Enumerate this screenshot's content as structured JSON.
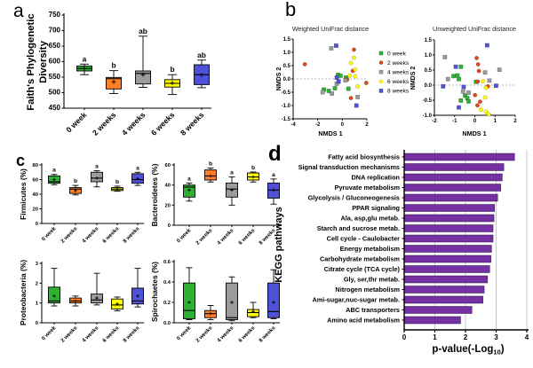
{
  "figure": {
    "panel_labels": {
      "a": "a",
      "b": "b",
      "c": "c",
      "d": "d"
    }
  },
  "palette": {
    "green": "#2eb133",
    "orange": "#ff7f27",
    "red": "#e8491b",
    "gray": "#9b9b9b",
    "yellow": "#ffff00",
    "blue": "#4f51d8",
    "purple": "#7531a2",
    "grid": "#c9c9c9",
    "dash": "#9a9a9a"
  },
  "groups": [
    "0 week",
    "2 weeks",
    "4 weeks",
    "6 weeks",
    "8 weeks"
  ],
  "chart_data": [
    {
      "id": "faith_pd_boxplot",
      "type": "box",
      "ylabel": "Faith's Phylogenetic Diversity",
      "ylabel_lines": [
        "Faith's Phylogenetic",
        "Diversity"
      ],
      "ylim": [
        450,
        750
      ],
      "yticks": [
        "450",
        "500",
        "550",
        "600",
        "650",
        "700",
        "750"
      ],
      "categories": [
        "0 week",
        "2 weeks",
        "4 weeks",
        "6 weeks",
        "8 weeks"
      ],
      "colors": [
        "#2eb133",
        "#ff7f27",
        "#9b9b9b",
        "#ffff00",
        "#4f51d8"
      ],
      "letters": [
        "a",
        "b",
        "ab",
        "b",
        "ab"
      ],
      "stats": [
        [
          558,
          570,
          578,
          586,
          592,
          578
        ],
        [
          497,
          512,
          545,
          549,
          571,
          535
        ],
        [
          517,
          528,
          562,
          570,
          682,
          558
        ],
        [
          494,
          518,
          530,
          542,
          558,
          531
        ],
        [
          516,
          526,
          558,
          590,
          605,
          557
        ]
      ]
    },
    {
      "id": "weighted_unifrac_nmds",
      "type": "scatter",
      "title": "Weighted UniFrac distance",
      "xlabel": "NMDS 1",
      "ylabel": "NMDS 2",
      "xlim": [
        -4,
        2
      ],
      "xticks": [
        "-4",
        "-2",
        "0",
        "2"
      ],
      "ylim": [
        -1.5,
        1.5
      ],
      "yticks": [
        "1.5",
        "1.0",
        "0.5",
        "0.0",
        "-0.5",
        "-1.0",
        "-1.5"
      ],
      "zero_line": true,
      "series": [
        {
          "name": "0 week",
          "marker": "square",
          "color": "#2eb133",
          "points": [
            [
              -0.35,
              0.15
            ],
            [
              -0.15,
              0.12
            ],
            [
              0.3,
              0.05
            ],
            [
              -1.5,
              -0.4
            ],
            [
              -1.1,
              -0.45
            ],
            [
              -0.6,
              -0.35
            ],
            [
              0.5,
              -0.37
            ]
          ]
        },
        {
          "name": "2 weeks",
          "marker": "circle",
          "color": "#e8491b",
          "points": [
            [
              -3.05,
              0.55
            ],
            [
              0.95,
              1.1
            ],
            [
              0.85,
              0.3
            ],
            [
              0.4,
              -0.02
            ],
            [
              1.95,
              -0.15
            ],
            [
              0.7,
              -0.72
            ]
          ]
        },
        {
          "name": "4 weeks",
          "marker": "square",
          "color": "#9b9b9b",
          "points": [
            [
              -0.9,
              1.15
            ],
            [
              0.25,
              -0.05
            ],
            [
              -1.6,
              -0.5
            ],
            [
              -0.85,
              -0.55
            ],
            [
              1.25,
              -0.68
            ],
            [
              -0.45,
              -0.18
            ]
          ]
        },
        {
          "name": "6 weeks",
          "marker": "circle",
          "color": "#ffff00",
          "points": [
            [
              0.95,
              0.8
            ],
            [
              0.7,
              0.6
            ],
            [
              1.05,
              0.35
            ],
            [
              1.05,
              0.1
            ],
            [
              0.6,
              0.12
            ],
            [
              1.25,
              -0.28
            ]
          ]
        },
        {
          "name": "8 weeks",
          "marker": "square",
          "color": "#4f51d8",
          "points": [
            [
              -0.5,
              1.25
            ],
            [
              -0.45,
              0.05
            ],
            [
              -0.3,
              -0.1
            ],
            [
              1.15,
              -1.0
            ]
          ]
        }
      ]
    },
    {
      "id": "unweighted_unifrac_nmds",
      "type": "scatter",
      "title": "Unweighted UniFrac distance",
      "xlabel": "NMDS 1",
      "ylabel": "NMDS 2",
      "xlim": [
        -2,
        2
      ],
      "xticks": [
        "-2",
        "-1",
        "0",
        "1",
        "2"
      ],
      "ylim": [
        -1.0,
        1.5
      ],
      "yticks": [
        "1.5",
        "1.0",
        "0.5",
        "0.0",
        "-0.5",
        "-1.0"
      ],
      "zero_line": true,
      "series": [
        {
          "name": "0 week",
          "marker": "square",
          "color": "#2eb133",
          "points": [
            [
              -0.69,
              0.61
            ],
            [
              -1.05,
              0.3
            ],
            [
              -0.86,
              0.32
            ],
            [
              -0.79,
              0.2
            ],
            [
              0.06,
              0.11
            ],
            [
              -0.48,
              -0.35
            ],
            [
              -0.37,
              -0.43
            ],
            [
              -0.69,
              -0.51
            ],
            [
              -0.31,
              -0.54
            ]
          ]
        },
        {
          "name": "2 weeks",
          "marker": "circle",
          "color": "#e8491b",
          "points": [
            [
              0.09,
              0.9
            ],
            [
              0.16,
              0.69
            ],
            [
              0.2,
              0.47
            ],
            [
              0.15,
              0.12
            ],
            [
              0.65,
              -0.04
            ],
            [
              0.01,
              -0.33
            ],
            [
              0.26,
              -0.55
            ],
            [
              0.13,
              -0.67
            ]
          ]
        },
        {
          "name": "4 weeks",
          "marker": "square",
          "color": "#9b9b9b",
          "points": [
            [
              -1.48,
              0.93
            ],
            [
              0.51,
              0.42
            ],
            [
              1.22,
              0.51
            ],
            [
              -1.33,
              0.2
            ],
            [
              0.72,
              0.15
            ],
            [
              -0.58,
              -0.21
            ],
            [
              -0.31,
              -0.25
            ]
          ]
        },
        {
          "name": "6 weeks",
          "marker": "circle",
          "color": "#ffff00",
          "points": [
            [
              0.4,
              0.13
            ],
            [
              0.55,
              -0.09
            ],
            [
              0.51,
              -0.41
            ],
            [
              0.3,
              -0.81
            ],
            [
              0.55,
              -0.88
            ],
            [
              0.69,
              -0.97
            ]
          ]
        },
        {
          "name": "8 weeks",
          "marker": "square",
          "color": "#4f51d8",
          "points": [
            [
              0.61,
              1.32
            ],
            [
              -0.94,
              0.61
            ],
            [
              -1.57,
              -0.04
            ],
            [
              -0.55,
              -0.06
            ],
            [
              1.05,
              -0.02
            ],
            [
              -0.79,
              -0.74
            ]
          ]
        }
      ]
    },
    {
      "id": "nmds_legend",
      "type": "legend",
      "entries": [
        {
          "label": "0 week",
          "marker": "square",
          "color": "#2eb133"
        },
        {
          "label": "2 weeks",
          "marker": "circle",
          "color": "#e8491b"
        },
        {
          "label": "4 weeks",
          "marker": "square",
          "color": "#9b9b9b"
        },
        {
          "label": "6 weeks",
          "marker": "circle",
          "color": "#ffff00"
        },
        {
          "label": "8 weeks",
          "marker": "square",
          "color": "#4f51d8"
        }
      ]
    },
    {
      "id": "firmicutes_boxplot",
      "type": "box",
      "ylabel": "Firmicutes (%)",
      "ylabel_lines": [
        "Firmicutes (%)"
      ],
      "ylim": [
        0,
        80
      ],
      "yticks": [
        "0",
        "20",
        "40",
        "60",
        "80"
      ],
      "categories": [
        "0 week",
        "2 weeks",
        "4 weeks",
        "6 weeks",
        "8 weeks"
      ],
      "colors": [
        "#2eb133",
        "#ff7f27",
        "#9b9b9b",
        "#ffff00",
        "#4f51d8"
      ],
      "letters": [
        "a",
        "b",
        "a",
        "b",
        "a"
      ],
      "stats": [
        [
          53,
          55,
          57,
          65,
          67,
          60
        ],
        [
          39,
          41,
          47,
          49,
          52,
          45
        ],
        [
          50,
          57,
          62,
          70,
          72,
          62
        ],
        [
          44,
          45,
          47,
          49,
          51,
          47
        ],
        [
          52,
          55,
          60,
          68,
          70,
          61
        ]
      ]
    },
    {
      "id": "bacteroidetes_boxplot",
      "type": "box",
      "ylabel": "Bacteroidetes (%)",
      "ylabel_lines": [
        "Bacteroidetes (%)"
      ],
      "ylim": [
        0,
        60
      ],
      "yticks": [
        "0",
        "20",
        "40",
        "60"
      ],
      "categories": [
        "0 week",
        "2 weeks",
        "4 weeks",
        "6 weeks",
        "8 weeks"
      ],
      "colors": [
        "#2eb133",
        "#ff7f27",
        "#9b9b9b",
        "#ffff00",
        "#4f51d8"
      ],
      "letters": [
        "a",
        "b",
        "a",
        "b",
        "a"
      ],
      "stats": [
        [
          24,
          28,
          38,
          40,
          42,
          35
        ],
        [
          43,
          45,
          49,
          55,
          57,
          49
        ],
        [
          20,
          28,
          36,
          42,
          48,
          35
        ],
        [
          43,
          45,
          48,
          52,
          53,
          48
        ],
        [
          21,
          27,
          35,
          42,
          46,
          35
        ]
      ]
    },
    {
      "id": "proteobacteria_boxplot",
      "type": "box",
      "ylabel": "Proteobacteria (%)",
      "ylabel_lines": [
        "Proteobacteria (%)"
      ],
      "ylim": [
        0,
        3
      ],
      "yticks": [
        "0",
        "1",
        "2",
        "3"
      ],
      "categories": [
        "0 week",
        "2 weeks",
        "4 weeks",
        "6 weeks",
        "8 weeks"
      ],
      "colors": [
        "#2eb133",
        "#ff7f27",
        "#9b9b9b",
        "#ffff00",
        "#4f51d8"
      ],
      "letters": [
        "",
        "",
        "",
        "",
        ""
      ],
      "stats": [
        [
          0.85,
          1.0,
          1.1,
          1.8,
          2.75,
          1.35
        ],
        [
          0.85,
          1.0,
          1.1,
          1.25,
          1.35,
          1.1
        ],
        [
          0.9,
          1.0,
          1.15,
          1.45,
          2.5,
          1.25
        ],
        [
          0.6,
          0.7,
          0.9,
          1.2,
          1.3,
          0.95
        ],
        [
          0.8,
          0.95,
          1.1,
          1.75,
          2.75,
          1.35
        ]
      ]
    },
    {
      "id": "spirochaetes_boxplot",
      "type": "box",
      "ylabel": "Spirochaetes (%)",
      "ylabel_lines": [
        "Spirochaetes (%)"
      ],
      "ylim": [
        0,
        0.6
      ],
      "yticks": [
        "0.0",
        "0.2",
        "0.4",
        "0.6"
      ],
      "categories": [
        "0 week",
        "2 weeks",
        "4 weeks",
        "6 weeks",
        "8 weeks"
      ],
      "colors": [
        "#2eb133",
        "#ff7f27",
        "#9b9b9b",
        "#ffff00",
        "#4f51d8"
      ],
      "letters": [
        "",
        "",
        "",
        "",
        ""
      ],
      "stats": [
        [
          0.03,
          0.04,
          0.12,
          0.39,
          0.54,
          0.2
        ],
        [
          0.03,
          0.05,
          0.09,
          0.12,
          0.17,
          0.09
        ],
        [
          0.02,
          0.03,
          0.05,
          0.39,
          0.45,
          0.2
        ],
        [
          0.05,
          0.06,
          0.1,
          0.13,
          0.2,
          0.11
        ],
        [
          0.04,
          0.05,
          0.11,
          0.39,
          0.52,
          0.2
        ]
      ]
    },
    {
      "id": "kegg_pathways_bar",
      "type": "bar",
      "orientation": "horizontal",
      "ylabel": "KEGG pathways",
      "xlabel": "p-value(-Log10)",
      "xlabel_parts": {
        "main": "p-value(-Log",
        "sub": "10",
        "end": ")"
      },
      "xlim": [
        0,
        4
      ],
      "xticks": [
        "0",
        "1",
        "2",
        "3",
        "4"
      ],
      "grid": true,
      "bar_color": "#7531a2",
      "categories": [
        "Fatty acid biosynthesis",
        "Signal transduction mechanisms",
        "DNA replication",
        "Pyruvate metabolism",
        "Glycolysis / Gluconeogenesis",
        "PPAR signaling",
        "Ala, asp,glu metab.",
        "Starch and sucrose metab.",
        "Cell cycle - Caulobacter",
        "Energy metabolism",
        "Carbohydrate metabolism",
        "Citrate cycle (TCA cycle)",
        "Gly, ser,thr metab.",
        "Nitrogen metabolism",
        "Ami-sugar,nuc-sugar metab.",
        "ABC transporters",
        "Amino acid metabolism"
      ],
      "values": [
        3.6,
        3.25,
        3.2,
        3.15,
        3.05,
        2.95,
        2.93,
        2.9,
        2.9,
        2.85,
        2.83,
        2.79,
        2.72,
        2.61,
        2.57,
        2.21,
        1.84
      ]
    }
  ]
}
